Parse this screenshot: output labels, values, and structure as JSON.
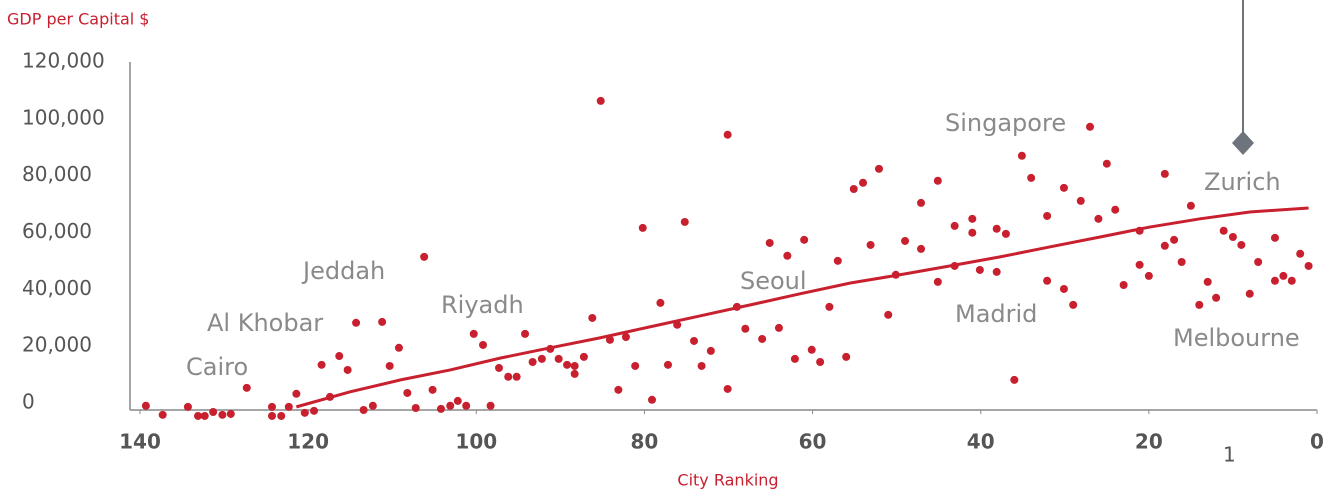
{
  "chart_data": {
    "type": "scatter",
    "y_label": "GDP per Capital $",
    "x_label": "City Ranking",
    "xlim": [
      140,
      0
    ],
    "ylim": [
      -2500,
      120000
    ],
    "xticks": [
      140,
      120,
      100,
      80,
      60,
      40,
      20,
      0
    ],
    "yticks": [
      0,
      {
        "value": 20000,
        "label": "20,000"
      },
      {
        "value": 40000,
        "label": "40,000"
      },
      {
        "value": 60000,
        "label": "60,000"
      },
      {
        "value": 80000,
        "label": "80,000"
      },
      {
        "value": 100000,
        "label": "100,000"
      },
      {
        "value": 120000,
        "label": "120,000"
      }
    ],
    "grid": false,
    "footnote": "1",
    "annotations": [
      "Cairo",
      "Al Khobar",
      "Jeddah",
      "Riyadh",
      "Seoul",
      "Madrid",
      "Singapore",
      "Zurich",
      "Melbourne"
    ],
    "series": [
      {
        "type": "scatter",
        "color": "#c8202f",
        "x": [
          139.3,
          137.3,
          134.3,
          133.1,
          132.3,
          131.3,
          130.2,
          129.2,
          127.3,
          124.3,
          124.3,
          123.2,
          122.3,
          121.4,
          120.4,
          119.3,
          118.4,
          117.4,
          116.3,
          115.3,
          114.3,
          113.4,
          112.3,
          111.2,
          110.3,
          109.2,
          108.2,
          107.2,
          106.2,
          105.2,
          104.2,
          103.1,
          102.2,
          101.2,
          100.3,
          99.2,
          98.3,
          97.3,
          96.2,
          95.2,
          94.2,
          93.3,
          92.2,
          91.2,
          90.2,
          89.2,
          88.3,
          88.3,
          87.2,
          86.2,
          85.2,
          84.1,
          83.1,
          82.2,
          81.1,
          80.2,
          79.1,
          78.1,
          77.2,
          76.1,
          75.2,
          74.1,
          73.2,
          72.1,
          70.1,
          70.1,
          69.0,
          68.0,
          66.0,
          65.1,
          64.0,
          63.0,
          62.1,
          61.0,
          60.1,
          59.1,
          58.0,
          57.0,
          56.0,
          55.1,
          54.0,
          53.1,
          52.1,
          51.0,
          50.1,
          49.0,
          47.1,
          47.1,
          45.1,
          45.1,
          43.1,
          43.1,
          41.0,
          41.0,
          40.1,
          38.1,
          38.1,
          37.0,
          36.0,
          35.1,
          34.0,
          32.1,
          32.1,
          30.1,
          30.1,
          29.0,
          28.1,
          27.0,
          26.0,
          25.0,
          24.0,
          23.0,
          21.1,
          21.1,
          20.0,
          18.1,
          18.1,
          17.0,
          16.1,
          15.0,
          14.0,
          13.0,
          12.0,
          11.1,
          10.0,
          9.0,
          8.0,
          7.0,
          5.0,
          5.0,
          4.0,
          3.0,
          2.0,
          1.0
        ],
        "values": [
          -1000,
          -4200,
          -1400,
          -4600,
          -4600,
          -3200,
          -4200,
          -3900,
          5300,
          -1400,
          -4600,
          -4600,
          -1400,
          3200,
          -3500,
          -2800,
          13400,
          2100,
          16500,
          11600,
          28200,
          -2500,
          -1000,
          28500,
          13000,
          19400,
          3500,
          -1800,
          51400,
          4600,
          -2100,
          -1000,
          700,
          -1000,
          24300,
          20400,
          -1000,
          12300,
          9200,
          9200,
          24300,
          14400,
          15500,
          19000,
          15500,
          13400,
          10200,
          13000,
          16200,
          29900,
          106300,
          22200,
          4600,
          23200,
          13000,
          61600,
          1100,
          35200,
          13400,
          27500,
          63700,
          21800,
          13000,
          18300,
          94400,
          4900,
          33800,
          26100,
          22500,
          56300,
          26400,
          51800,
          15500,
          57400,
          18700,
          14400,
          33800,
          50000,
          16200,
          75300,
          77500,
          55600,
          82400,
          31000,
          45100,
          57000,
          54200,
          70400,
          42600,
          78200,
          62300,
          48200,
          64800,
          59900,
          46800,
          46100,
          61300,
          59500,
          8100,
          87000,
          79200,
          65800,
          43000,
          75700,
          40100,
          34500,
          71100,
          97200,
          64800,
          84200,
          68000,
          41500,
          60600,
          48600,
          44700,
          80600,
          55300,
          57400,
          49600,
          69400,
          34500,
          42600,
          37000,
          60600,
          58400,
          55600,
          38400,
          49600,
          58100,
          43000,
          44700,
          43000,
          52500,
          48200
        ]
      },
      {
        "type": "line",
        "color": "#c8202f",
        "x": [
          121.4,
          115.0,
          109.0,
          103.1,
          97.1,
          91.2,
          85.3,
          79.3,
          73.4,
          67.4,
          61.5,
          55.5,
          49.6,
          43.7,
          37.7,
          31.8,
          25.8,
          19.9,
          13.9,
          8.0,
          1.0
        ],
        "values": [
          -1400,
          3900,
          8100,
          11600,
          15800,
          19400,
          22900,
          26800,
          30600,
          34500,
          38400,
          42200,
          45100,
          48200,
          51400,
          54900,
          58400,
          61900,
          64800,
          67200,
          68600
        ]
      }
    ]
  }
}
